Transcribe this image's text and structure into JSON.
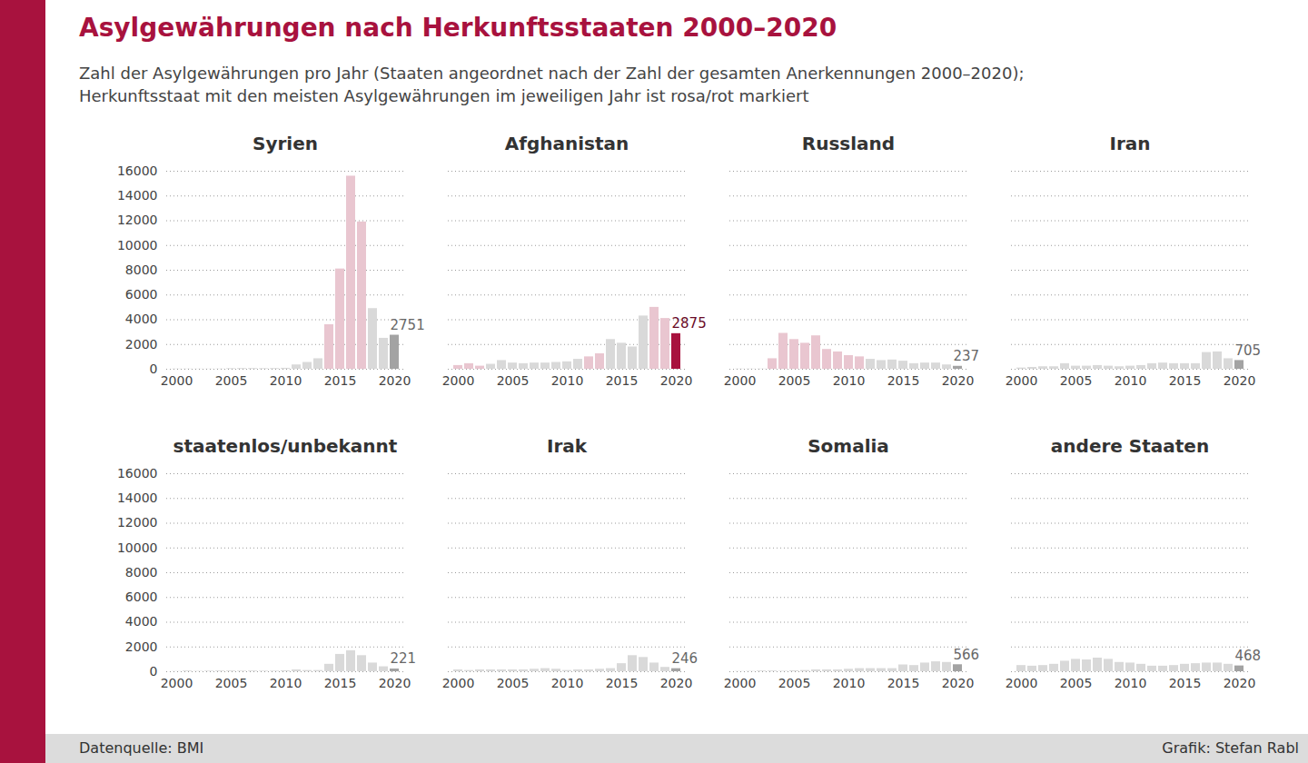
{
  "title": "Asylgewährungen nach Herkunftsstaaten 2000–2020",
  "subtitle": "Zahl der Asylgewährungen pro Jahr (Staaten angeordnet nach der Zahl der gesamten Anerkennungen 2000–2020);\nHerkunftsstaat mit den meisten Asylgewährungen im jeweiligen Jahr ist rosa/rot markiert",
  "source": "Datenquelle: BMI",
  "credit": "Grafik: Stefan Rabl",
  "chart_data": [
    {
      "type": "bar",
      "title": "Syrien",
      "categories": [
        2000,
        2001,
        2002,
        2003,
        2004,
        2005,
        2006,
        2007,
        2008,
        2009,
        2010,
        2011,
        2012,
        2013,
        2014,
        2015,
        2016,
        2017,
        2018,
        2019,
        2020
      ],
      "values": [
        20,
        20,
        15,
        15,
        20,
        50,
        60,
        60,
        50,
        60,
        80,
        350,
        550,
        850,
        3600,
        8100,
        15600,
        11900,
        4900,
        2500,
        2751
      ],
      "colors": [
        "#d9d9d9",
        "#d9d9d9",
        "#d9d9d9",
        "#d9d9d9",
        "#d9d9d9",
        "#d9d9d9",
        "#d9d9d9",
        "#d9d9d9",
        "#d9d9d9",
        "#d9d9d9",
        "#d9d9d9",
        "#d9d9d9",
        "#d9d9d9",
        "#d9d9d9",
        "#e9c6d0",
        "#e9c6d0",
        "#e9c6d0",
        "#e9c6d0",
        "#d9d9d9",
        "#d9d9d9",
        "#a3a3a3"
      ],
      "data_labels": true,
      "value_labels": [
        null,
        null,
        null,
        null,
        null,
        null,
        null,
        null,
        null,
        null,
        null,
        null,
        null,
        null,
        null,
        null,
        null,
        null,
        null,
        null,
        "2751"
      ],
      "ylim": [
        0,
        16000
      ],
      "yticks": [
        0,
        2000,
        4000,
        6000,
        8000,
        10000,
        12000,
        14000,
        16000
      ],
      "xticks": [
        2000,
        2005,
        2010,
        2015,
        2020
      ],
      "grid": true
    },
    {
      "type": "bar",
      "title": "Afghanistan",
      "categories": [
        2000,
        2001,
        2002,
        2003,
        2004,
        2005,
        2006,
        2007,
        2008,
        2009,
        2010,
        2011,
        2012,
        2013,
        2014,
        2015,
        2016,
        2017,
        2018,
        2019,
        2020
      ],
      "values": [
        300,
        450,
        250,
        400,
        700,
        500,
        450,
        500,
        500,
        550,
        600,
        800,
        1000,
        1250,
        2400,
        2100,
        1800,
        4300,
        5000,
        4100,
        2875
      ],
      "colors": [
        "#e9c6d0",
        "#e9c6d0",
        "#e9c6d0",
        "#d9d9d9",
        "#d9d9d9",
        "#d9d9d9",
        "#d9d9d9",
        "#d9d9d9",
        "#d9d9d9",
        "#d9d9d9",
        "#d9d9d9",
        "#d9d9d9",
        "#e9c6d0",
        "#e9c6d0",
        "#d9d9d9",
        "#d9d9d9",
        "#d9d9d9",
        "#d9d9d9",
        "#e9c6d0",
        "#e9c6d0",
        "#a8123e"
      ],
      "data_labels": true,
      "value_labels": [
        null,
        null,
        null,
        null,
        null,
        null,
        null,
        null,
        null,
        null,
        null,
        null,
        null,
        null,
        null,
        null,
        null,
        null,
        null,
        null,
        "2875"
      ],
      "ylim": [
        0,
        16000
      ],
      "yticks": [
        0,
        2000,
        4000,
        6000,
        8000,
        10000,
        12000,
        14000,
        16000
      ],
      "xticks": [
        2000,
        2005,
        2010,
        2015,
        2020
      ],
      "grid": true,
      "tick_labels": "x"
    },
    {
      "type": "bar",
      "title": "Russland",
      "categories": [
        2000,
        2001,
        2002,
        2003,
        2004,
        2005,
        2006,
        2007,
        2008,
        2009,
        2010,
        2011,
        2012,
        2013,
        2014,
        2015,
        2016,
        2017,
        2018,
        2019,
        2020
      ],
      "values": [
        20,
        20,
        20,
        850,
        2900,
        2400,
        2100,
        2700,
        1600,
        1400,
        1100,
        1000,
        800,
        700,
        750,
        650,
        450,
        500,
        500,
        350,
        237
      ],
      "colors": [
        "#d9d9d9",
        "#d9d9d9",
        "#d9d9d9",
        "#e9c6d0",
        "#e9c6d0",
        "#e9c6d0",
        "#e9c6d0",
        "#e9c6d0",
        "#e9c6d0",
        "#e9c6d0",
        "#e9c6d0",
        "#e9c6d0",
        "#d9d9d9",
        "#d9d9d9",
        "#d9d9d9",
        "#d9d9d9",
        "#d9d9d9",
        "#d9d9d9",
        "#d9d9d9",
        "#d9d9d9",
        "#a3a3a3"
      ],
      "data_labels": true,
      "value_labels": [
        null,
        null,
        null,
        null,
        null,
        null,
        null,
        null,
        null,
        null,
        null,
        null,
        null,
        null,
        null,
        null,
        null,
        null,
        null,
        null,
        "237"
      ],
      "ylim": [
        0,
        16000
      ],
      "yticks": [
        0,
        2000,
        4000,
        6000,
        8000,
        10000,
        12000,
        14000,
        16000
      ],
      "xticks": [
        2000,
        2005,
        2010,
        2015,
        2020
      ],
      "grid": true,
      "tick_labels": "x"
    },
    {
      "type": "bar",
      "title": "Iran",
      "categories": [
        2000,
        2001,
        2002,
        2003,
        2004,
        2005,
        2006,
        2007,
        2008,
        2009,
        2010,
        2011,
        2012,
        2013,
        2014,
        2015,
        2016,
        2017,
        2018,
        2019,
        2020
      ],
      "values": [
        100,
        150,
        200,
        200,
        450,
        250,
        250,
        300,
        250,
        200,
        250,
        300,
        450,
        500,
        450,
        450,
        450,
        1350,
        1400,
        850,
        705
      ],
      "colors": [
        "#d9d9d9",
        "#d9d9d9",
        "#d9d9d9",
        "#d9d9d9",
        "#d9d9d9",
        "#d9d9d9",
        "#d9d9d9",
        "#d9d9d9",
        "#d9d9d9",
        "#d9d9d9",
        "#d9d9d9",
        "#d9d9d9",
        "#d9d9d9",
        "#d9d9d9",
        "#d9d9d9",
        "#d9d9d9",
        "#d9d9d9",
        "#d9d9d9",
        "#d9d9d9",
        "#d9d9d9",
        "#a3a3a3"
      ],
      "data_labels": true,
      "value_labels": [
        null,
        null,
        null,
        null,
        null,
        null,
        null,
        null,
        null,
        null,
        null,
        null,
        null,
        null,
        null,
        null,
        null,
        null,
        null,
        null,
        "705"
      ],
      "ylim": [
        0,
        16000
      ],
      "yticks": [
        0,
        2000,
        4000,
        6000,
        8000,
        10000,
        12000,
        14000,
        16000
      ],
      "xticks": [
        2000,
        2005,
        2010,
        2015,
        2020
      ],
      "grid": true,
      "tick_labels": "x"
    },
    {
      "type": "bar",
      "title": "staatenlos/unbekannt",
      "categories": [
        2000,
        2001,
        2002,
        2003,
        2004,
        2005,
        2006,
        2007,
        2008,
        2009,
        2010,
        2011,
        2012,
        2013,
        2014,
        2015,
        2016,
        2017,
        2018,
        2019,
        2020
      ],
      "values": [
        20,
        60,
        30,
        50,
        60,
        60,
        50,
        60,
        50,
        50,
        80,
        150,
        100,
        100,
        600,
        1400,
        1700,
        1300,
        700,
        400,
        221
      ],
      "colors": [
        "#d9d9d9",
        "#d9d9d9",
        "#d9d9d9",
        "#d9d9d9",
        "#d9d9d9",
        "#d9d9d9",
        "#d9d9d9",
        "#d9d9d9",
        "#d9d9d9",
        "#d9d9d9",
        "#d9d9d9",
        "#d9d9d9",
        "#d9d9d9",
        "#d9d9d9",
        "#d9d9d9",
        "#d9d9d9",
        "#d9d9d9",
        "#d9d9d9",
        "#d9d9d9",
        "#d9d9d9",
        "#a3a3a3"
      ],
      "data_labels": true,
      "value_labels": [
        null,
        null,
        null,
        null,
        null,
        null,
        null,
        null,
        null,
        null,
        null,
        null,
        null,
        null,
        null,
        null,
        null,
        null,
        null,
        null,
        "221"
      ],
      "ylim": [
        0,
        16000
      ],
      "yticks": [
        0,
        2000,
        4000,
        6000,
        8000,
        10000,
        12000,
        14000,
        16000
      ],
      "xticks": [
        2000,
        2005,
        2010,
        2015,
        2020
      ],
      "grid": true
    },
    {
      "type": "bar",
      "title": "Irak",
      "categories": [
        2000,
        2001,
        2002,
        2003,
        2004,
        2005,
        2006,
        2007,
        2008,
        2009,
        2010,
        2011,
        2012,
        2013,
        2014,
        2015,
        2016,
        2017,
        2018,
        2019,
        2020
      ],
      "values": [
        150,
        100,
        150,
        150,
        150,
        150,
        150,
        200,
        250,
        200,
        100,
        150,
        150,
        200,
        250,
        650,
        1300,
        1150,
        700,
        350,
        246
      ],
      "colors": [
        "#d9d9d9",
        "#d9d9d9",
        "#d9d9d9",
        "#d9d9d9",
        "#d9d9d9",
        "#d9d9d9",
        "#d9d9d9",
        "#d9d9d9",
        "#d9d9d9",
        "#d9d9d9",
        "#d9d9d9",
        "#d9d9d9",
        "#d9d9d9",
        "#d9d9d9",
        "#d9d9d9",
        "#d9d9d9",
        "#d9d9d9",
        "#d9d9d9",
        "#d9d9d9",
        "#d9d9d9",
        "#a3a3a3"
      ],
      "data_labels": true,
      "value_labels": [
        null,
        null,
        null,
        null,
        null,
        null,
        null,
        null,
        null,
        null,
        null,
        null,
        null,
        null,
        null,
        null,
        null,
        null,
        null,
        null,
        "246"
      ],
      "ylim": [
        0,
        16000
      ],
      "yticks": [
        0,
        2000,
        4000,
        6000,
        8000,
        10000,
        12000,
        14000,
        16000
      ],
      "xticks": [
        2000,
        2005,
        2010,
        2015,
        2020
      ],
      "grid": true,
      "tick_labels": "x"
    },
    {
      "type": "bar",
      "title": "Somalia",
      "categories": [
        2000,
        2001,
        2002,
        2003,
        2004,
        2005,
        2006,
        2007,
        2008,
        2009,
        2010,
        2011,
        2012,
        2013,
        2014,
        2015,
        2016,
        2017,
        2018,
        2019,
        2020
      ],
      "values": [
        20,
        30,
        60,
        60,
        40,
        80,
        100,
        150,
        150,
        150,
        200,
        250,
        250,
        250,
        250,
        550,
        500,
        700,
        800,
        750,
        566
      ],
      "colors": [
        "#d9d9d9",
        "#d9d9d9",
        "#d9d9d9",
        "#d9d9d9",
        "#d9d9d9",
        "#d9d9d9",
        "#d9d9d9",
        "#d9d9d9",
        "#d9d9d9",
        "#d9d9d9",
        "#d9d9d9",
        "#d9d9d9",
        "#d9d9d9",
        "#d9d9d9",
        "#d9d9d9",
        "#d9d9d9",
        "#d9d9d9",
        "#d9d9d9",
        "#d9d9d9",
        "#d9d9d9",
        "#a3a3a3"
      ],
      "data_labels": true,
      "value_labels": [
        null,
        null,
        null,
        null,
        null,
        null,
        null,
        null,
        null,
        null,
        null,
        null,
        null,
        null,
        null,
        null,
        null,
        null,
        null,
        null,
        "566"
      ],
      "ylim": [
        0,
        16000
      ],
      "yticks": [
        0,
        2000,
        4000,
        6000,
        8000,
        10000,
        12000,
        14000,
        16000
      ],
      "xticks": [
        2000,
        2005,
        2010,
        2015,
        2020
      ],
      "grid": true,
      "tick_labels": "x"
    },
    {
      "type": "bar",
      "title": "andere Staaten",
      "categories": [
        2000,
        2001,
        2002,
        2003,
        2004,
        2005,
        2006,
        2007,
        2008,
        2009,
        2010,
        2011,
        2012,
        2013,
        2014,
        2015,
        2016,
        2017,
        2018,
        2019,
        2020
      ],
      "values": [
        500,
        450,
        500,
        600,
        850,
        1000,
        950,
        1100,
        1000,
        750,
        700,
        600,
        450,
        450,
        500,
        600,
        650,
        700,
        700,
        600,
        468
      ],
      "colors": [
        "#d9d9d9",
        "#d9d9d9",
        "#d9d9d9",
        "#d9d9d9",
        "#d9d9d9",
        "#d9d9d9",
        "#d9d9d9",
        "#d9d9d9",
        "#d9d9d9",
        "#d9d9d9",
        "#d9d9d9",
        "#d9d9d9",
        "#d9d9d9",
        "#d9d9d9",
        "#d9d9d9",
        "#d9d9d9",
        "#d9d9d9",
        "#d9d9d9",
        "#d9d9d9",
        "#d9d9d9",
        "#a3a3a3"
      ],
      "data_labels": true,
      "value_labels": [
        null,
        null,
        null,
        null,
        null,
        null,
        null,
        null,
        null,
        null,
        null,
        null,
        null,
        null,
        null,
        null,
        null,
        null,
        null,
        null,
        "468"
      ],
      "ylim": [
        0,
        16000
      ],
      "yticks": [
        0,
        2000,
        4000,
        6000,
        8000,
        10000,
        12000,
        14000,
        16000
      ],
      "xticks": [
        2000,
        2005,
        2010,
        2015,
        2020
      ],
      "grid": true,
      "tick_labels": "x"
    }
  ]
}
